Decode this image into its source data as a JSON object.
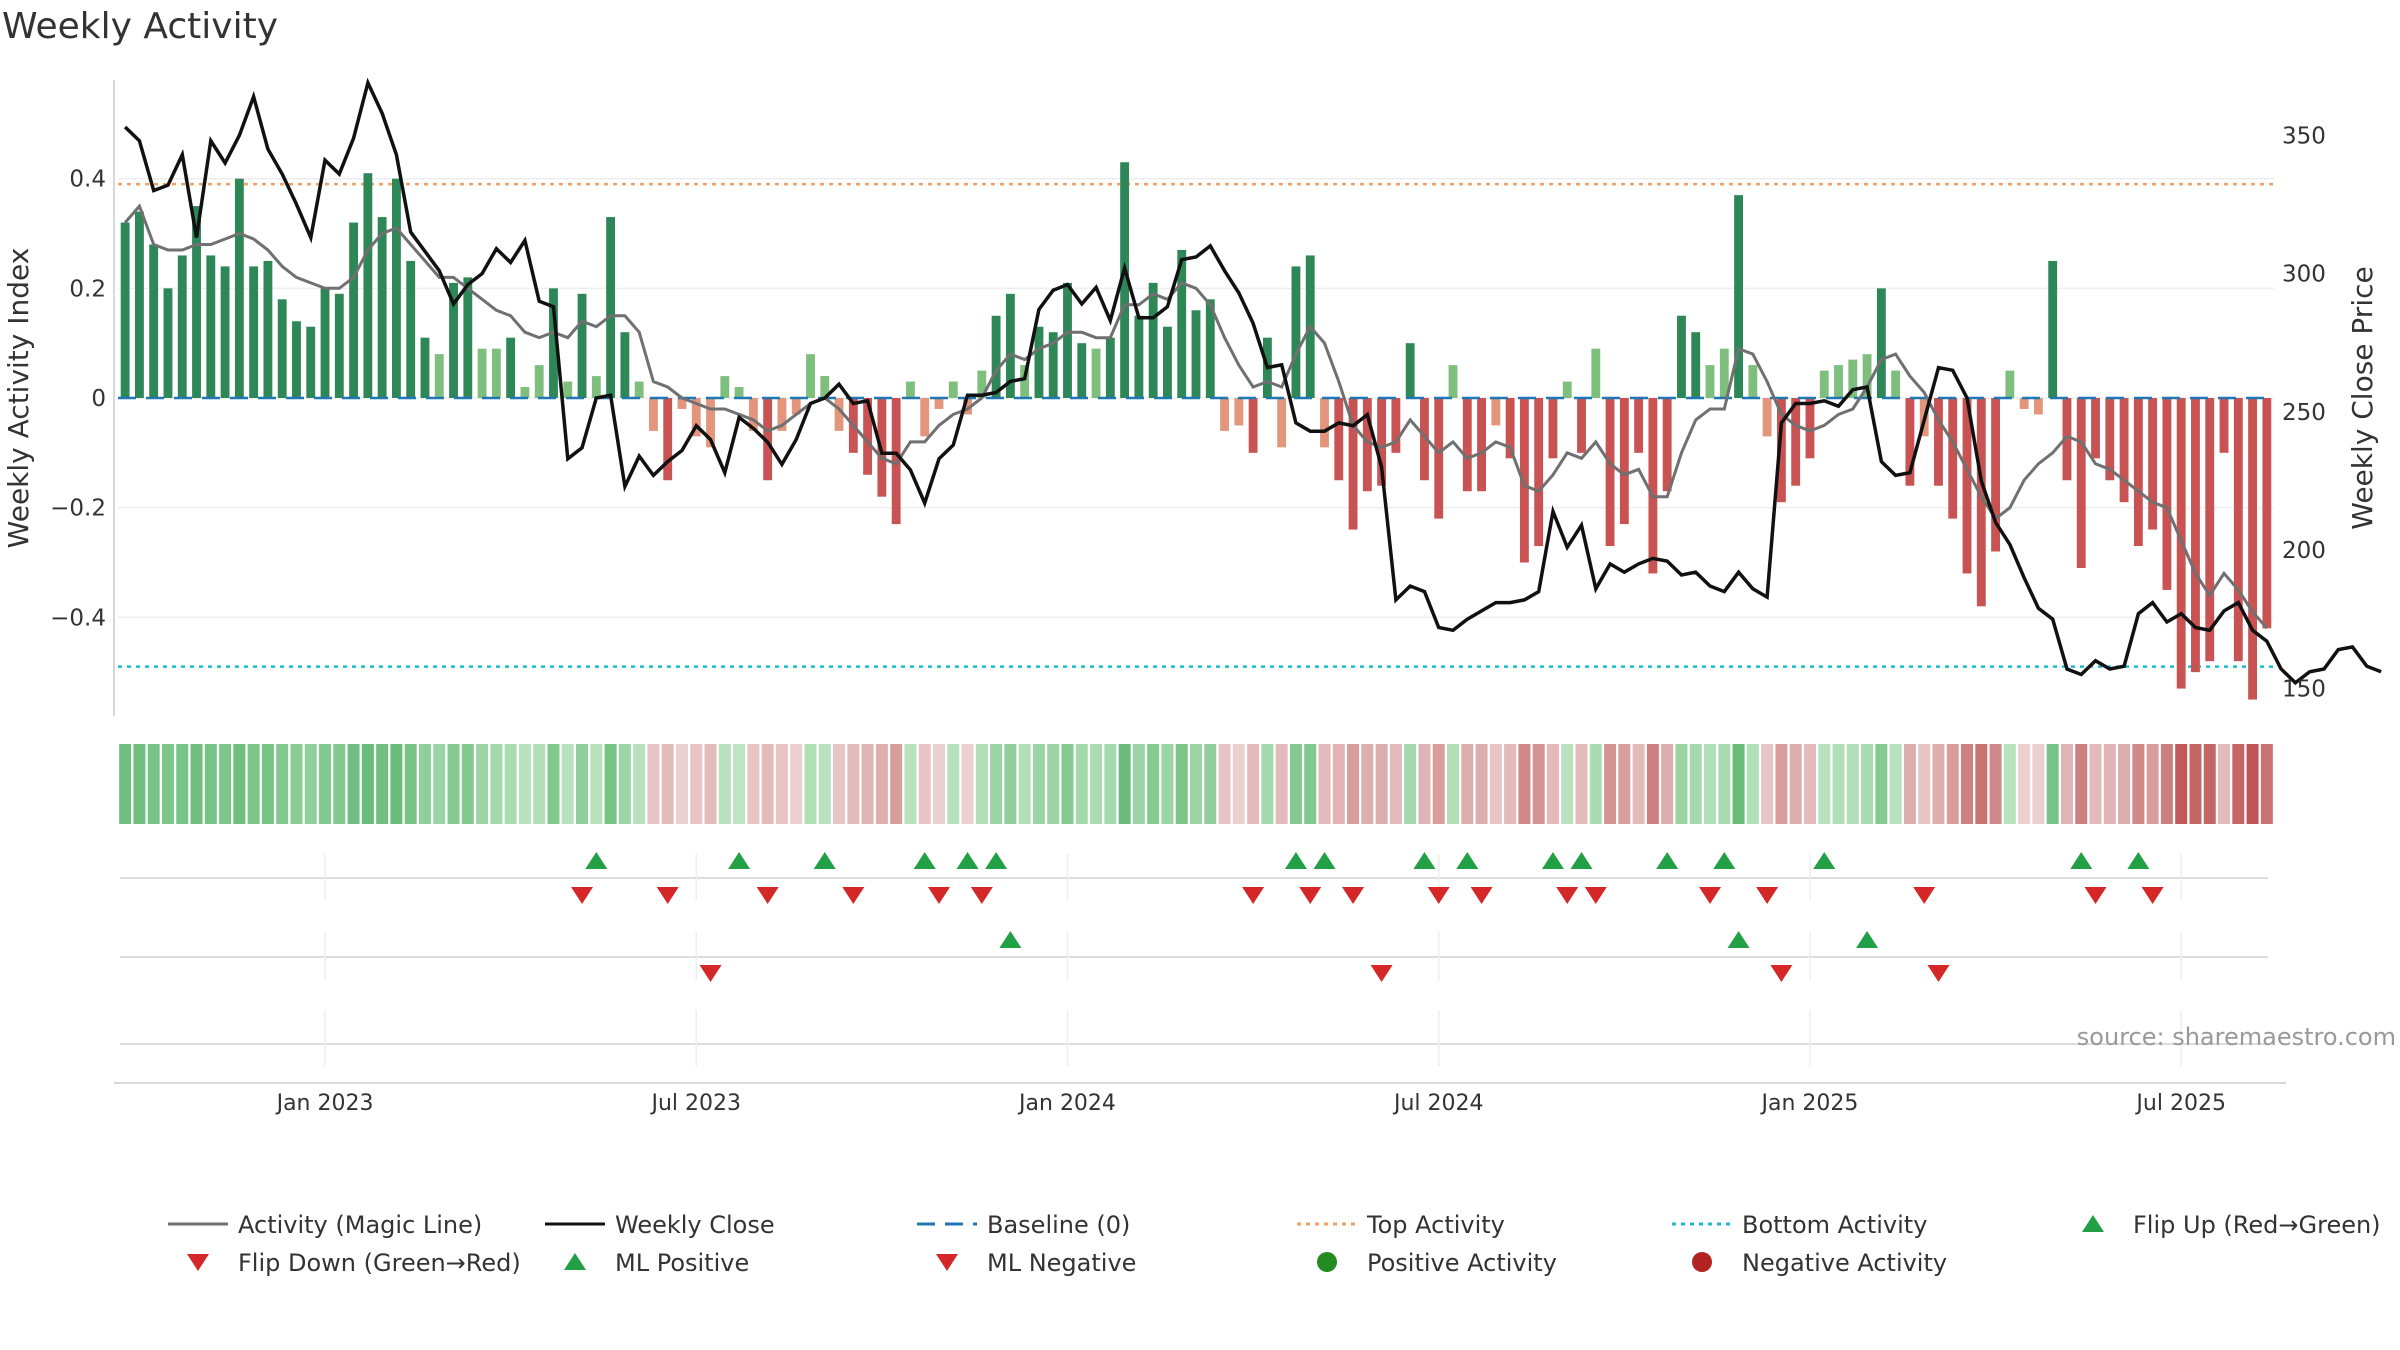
{
  "chart_data": {
    "type": "bar",
    "title": "Weekly Activity",
    "ylabel": "Weekly Activity Index",
    "ylabel_right": "Weekly Close Price",
    "ylim": [
      -0.58,
      0.58
    ],
    "ylim_right": [
      140,
      370
    ],
    "yticks": [
      {
        "v": 0.4,
        "label": "0.4"
      },
      {
        "v": 0.2,
        "label": "0.2"
      },
      {
        "v": 0,
        "label": "0"
      },
      {
        "v": -0.2,
        "label": "−0.2"
      },
      {
        "v": -0.4,
        "label": "−0.4"
      }
    ],
    "yticks_right": [
      {
        "v": 350,
        "label": "350"
      },
      {
        "v": 300,
        "label": "300"
      },
      {
        "v": 250,
        "label": "250"
      },
      {
        "v": 200,
        "label": "200"
      },
      {
        "v": 150,
        "label": "150"
      }
    ],
    "xticks": [
      {
        "week": 14.5,
        "label": "Jan 2023"
      },
      {
        "week": 40.5,
        "label": "Jul 2023"
      },
      {
        "week": 66.5,
        "label": "Jan 2024"
      },
      {
        "week": 92.5,
        "label": "Jul 2024"
      },
      {
        "week": 118.5,
        "label": "Jan 2025"
      },
      {
        "week": 144.5,
        "label": "Jul 2025"
      }
    ],
    "top_activity": 0.39,
    "bottom_activity": -0.49,
    "activity": [
      0.32,
      0.34,
      0.28,
      0.2,
      0.26,
      0.35,
      0.26,
      0.24,
      0.4,
      0.24,
      0.25,
      0.18,
      0.14,
      0.13,
      0.2,
      0.19,
      0.32,
      0.41,
      0.33,
      0.4,
      0.25,
      0.11,
      0.08,
      0.21,
      0.22,
      0.09,
      0.09,
      0.11,
      0.02,
      0.06,
      0.2,
      0.03,
      0.19,
      0.04,
      0.33,
      0.12,
      0.03,
      -0.06,
      -0.15,
      -0.02,
      -0.07,
      -0.09,
      0.04,
      0.02,
      -0.06,
      -0.15,
      -0.06,
      -0.03,
      0.08,
      0.04,
      -0.06,
      -0.1,
      -0.14,
      -0.18,
      -0.23,
      0.03,
      -0.07,
      -0.02,
      0.03,
      -0.03,
      0.05,
      0.15,
      0.19,
      0.06,
      0.13,
      0.12,
      0.21,
      0.1,
      0.09,
      0.11,
      0.43,
      0.15,
      0.21,
      0.13,
      0.27,
      0.16,
      0.18,
      -0.06,
      -0.05,
      -0.1,
      0.11,
      -0.09,
      0.24,
      0.26,
      -0.09,
      -0.15,
      -0.24,
      -0.17,
      -0.16,
      -0.1,
      0.1,
      -0.15,
      -0.22,
      0.06,
      -0.17,
      -0.17,
      -0.05,
      -0.11,
      -0.3,
      -0.27,
      -0.11,
      0.03,
      -0.1,
      0.09,
      -0.27,
      -0.23,
      -0.1,
      -0.32,
      -0.17,
      0.15,
      0.12,
      0.06,
      0.09,
      0.37,
      0.06,
      -0.07,
      -0.19,
      -0.16,
      -0.11,
      0.05,
      0.06,
      0.07,
      0.08,
      0.2,
      0.05,
      -0.16,
      -0.07,
      -0.16,
      -0.22,
      -0.32,
      -0.38,
      -0.28,
      0.05,
      -0.02,
      -0.03,
      0.25,
      -0.15,
      -0.31,
      -0.11,
      -0.15,
      -0.19,
      -0.27,
      -0.24,
      -0.35,
      -0.53,
      -0.5,
      -0.48,
      -0.1,
      -0.48,
      -0.55,
      -0.42
    ],
    "magic_line": [
      0.32,
      0.35,
      0.28,
      0.27,
      0.27,
      0.28,
      0.28,
      0.29,
      0.3,
      0.29,
      0.27,
      0.24,
      0.22,
      0.21,
      0.2,
      0.2,
      0.22,
      0.27,
      0.3,
      0.31,
      0.28,
      0.25,
      0.22,
      0.22,
      0.2,
      0.18,
      0.16,
      0.15,
      0.12,
      0.11,
      0.12,
      0.11,
      0.14,
      0.13,
      0.15,
      0.15,
      0.12,
      0.03,
      0.02,
      0.0,
      -0.01,
      -0.02,
      -0.02,
      -0.03,
      -0.04,
      -0.06,
      -0.05,
      -0.03,
      -0.01,
      0.0,
      -0.02,
      -0.05,
      -0.08,
      -0.11,
      -0.12,
      -0.08,
      -0.08,
      -0.05,
      -0.03,
      -0.02,
      0.0,
      0.05,
      0.08,
      0.07,
      0.09,
      0.1,
      0.12,
      0.12,
      0.11,
      0.11,
      0.17,
      0.17,
      0.19,
      0.18,
      0.21,
      0.2,
      0.17,
      0.11,
      0.06,
      0.02,
      0.03,
      0.02,
      0.08,
      0.13,
      0.1,
      0.03,
      -0.05,
      -0.08,
      -0.09,
      -0.08,
      -0.04,
      -0.07,
      -0.1,
      -0.08,
      -0.11,
      -0.1,
      -0.08,
      -0.09,
      -0.16,
      -0.17,
      -0.14,
      -0.1,
      -0.11,
      -0.08,
      -0.12,
      -0.14,
      -0.13,
      -0.18,
      -0.18,
      -0.1,
      -0.04,
      -0.02,
      -0.02,
      0.09,
      0.08,
      0.03,
      -0.03,
      -0.05,
      -0.06,
      -0.05,
      -0.03,
      -0.02,
      0.02,
      0.07,
      0.08,
      0.04,
      0.01,
      -0.04,
      -0.08,
      -0.13,
      -0.18,
      -0.22,
      -0.2,
      -0.15,
      -0.12,
      -0.1,
      -0.07,
      -0.08,
      -0.12,
      -0.13,
      -0.15,
      -0.17,
      -0.19,
      -0.2,
      -0.26,
      -0.32,
      -0.36,
      -0.32,
      -0.35,
      -0.39,
      -0.42
    ],
    "weekly_close": [
      353,
      348,
      330,
      332,
      343,
      313,
      348,
      340,
      350,
      364,
      345,
      336,
      325,
      313,
      341,
      336,
      349,
      369,
      358,
      343,
      315,
      308,
      301,
      289,
      296,
      300,
      309,
      304,
      312,
      290,
      288,
      233,
      237,
      255,
      256,
      223,
      234,
      227,
      232,
      236,
      245,
      240,
      228,
      248,
      244,
      239,
      231,
      240,
      253,
      255,
      260,
      253,
      254,
      235,
      235,
      229,
      217,
      233,
      238,
      256,
      256,
      257,
      261,
      262,
      287,
      294,
      296,
      289,
      295,
      283,
      302,
      284,
      284,
      288,
      305,
      306,
      310,
      301,
      293,
      282,
      266,
      267,
      246,
      243,
      243,
      246,
      245,
      249,
      230,
      182,
      187,
      185,
      172,
      171,
      175,
      178,
      181,
      181,
      182,
      185,
      214,
      201,
      209,
      186,
      195,
      192,
      195,
      197,
      196,
      191,
      192,
      187,
      185,
      192,
      186,
      183,
      246,
      253,
      253,
      254,
      252,
      258,
      259,
      232,
      227,
      228,
      247,
      266,
      265,
      255,
      225,
      210,
      202,
      190,
      179,
      175,
      157,
      155,
      160,
      157,
      158,
      177,
      181,
      174,
      177,
      172,
      171,
      178,
      181,
      171,
      167,
      157,
      152,
      156,
      157,
      164,
      165,
      158,
      156
    ],
    "heat_colors": [
      "#70BF80",
      "#70BF80",
      "#78C486",
      "#7DC68A",
      "#78C486",
      "#70BF80",
      "#78C486",
      "#7DC68A",
      "#70BF80",
      "#7DC68A",
      "#78C486",
      "#82C98F",
      "#8ACC95",
      "#8FCF9A",
      "#82C98F",
      "#82C98F",
      "#70BF80",
      "#6ABC7B",
      "#70BF80",
      "#6ABC7B",
      "#78C486",
      "#90CF9B",
      "#9BD5A5",
      "#84CA91",
      "#82C98F",
      "#9BD5A5",
      "#A4D9AD",
      "#AADCB2",
      "#B8E2BE",
      "#B0DFB8",
      "#82C98F",
      "#B8E2BE",
      "#8FCF9A",
      "#B8E2BE",
      "#78C486",
      "#9BD5A5",
      "#B8E2BE",
      "#E8C4C4",
      "#E3BBBB",
      "#ECD0D0",
      "#E8C4C4",
      "#E3BBBB",
      "#B8E2BE",
      "#BFE5C4",
      "#E8C4C4",
      "#E3BBBB",
      "#E8C4C4",
      "#ECD0D0",
      "#B0DFB8",
      "#B8E2BE",
      "#E8C4C4",
      "#E3BBBB",
      "#E0B4B4",
      "#DCAEAE",
      "#D89E9E",
      "#B8E2BE",
      "#E8C4C4",
      "#ECD0D0",
      "#B8E2BE",
      "#ECD0D0",
      "#B0DFB8",
      "#9BD5A5",
      "#90CF9B",
      "#B0DFB8",
      "#9BD5A5",
      "#9BD5A5",
      "#84CA91",
      "#A4D9AD",
      "#AADCB2",
      "#A4D9AD",
      "#6ABC7B",
      "#9BD5A5",
      "#84CA91",
      "#9BD5A5",
      "#7DC68A",
      "#9BD5A5",
      "#90CF9B",
      "#E8C4C4",
      "#ECD0D0",
      "#E3BBBB",
      "#A4D9AD",
      "#E3BBBB",
      "#84CA91",
      "#82C98F",
      "#E3BBBB",
      "#E0B4B4",
      "#D89E9E",
      "#DCAEAE",
      "#DCAEAE",
      "#E3BBBB",
      "#A4D9AD",
      "#E0B4B4",
      "#D89E9E",
      "#B0DFB8",
      "#DCAEAE",
      "#DCAEAE",
      "#E8C4C4",
      "#E3BBBB",
      "#D08888",
      "#D49494",
      "#E3BBBB",
      "#B8E2BE",
      "#E3BBBB",
      "#AADCB2",
      "#D49494",
      "#D89E9E",
      "#E3BBBB",
      "#CC8080",
      "#DCAEAE",
      "#9BD5A5",
      "#A4D9AD",
      "#B0DFB8",
      "#AADCB2",
      "#6ABC7B",
      "#B0DFB8",
      "#E8C4C4",
      "#D89E9E",
      "#DCAEAE",
      "#E3BBBB",
      "#B8E2BE",
      "#B0DFB8",
      "#B0DFB8",
      "#AADCB2",
      "#84CA91",
      "#B8E2BE",
      "#DCAEAE",
      "#E8C4C4",
      "#DCAEAE",
      "#D89E9E",
      "#CC8080",
      "#C87474",
      "#D08888",
      "#B8E2BE",
      "#ECD0D0",
      "#ECD0D0",
      "#78C486",
      "#E0B4B4",
      "#CC8080",
      "#E3BBBB",
      "#E0B4B4",
      "#DCAEAE",
      "#D08888",
      "#D89E9E",
      "#CC8080",
      "#C05A5A",
      "#C46666",
      "#C46666",
      "#E3BBBB",
      "#C46666",
      "#BE5555",
      "#C87474"
    ],
    "events_row1": {
      "flip_up": [
        33,
        43,
        49,
        56,
        59,
        61,
        82,
        84,
        91,
        94,
        100,
        102,
        108,
        112,
        119,
        137,
        141
      ],
      "flip_down": [
        32,
        38,
        45,
        51,
        57,
        60,
        79,
        83,
        86,
        92,
        95,
        101,
        103,
        111,
        115,
        126,
        138,
        142
      ]
    },
    "events_row2": {
      "ml_positive": [
        62,
        113,
        122
      ],
      "ml_negative": [
        41,
        88,
        116,
        127
      ]
    },
    "legend": [
      {
        "label": "Activity (Magic Line)",
        "symbol": "line-gray"
      },
      {
        "label": "Weekly Close",
        "symbol": "line-black"
      },
      {
        "label": "Baseline (0)",
        "symbol": "dash-blue"
      },
      {
        "label": "Top Activity",
        "symbol": "dot-orange"
      },
      {
        "label": "Bottom Activity",
        "symbol": "dot-cyan"
      },
      {
        "label": "Flip Up (Red→Green)",
        "symbol": "tri-up"
      },
      {
        "label": "Flip Down (Green→Red)",
        "symbol": "tri-down"
      },
      {
        "label": "ML Positive",
        "symbol": "tri-up"
      },
      {
        "label": "ML Negative",
        "symbol": "tri-down"
      },
      {
        "label": "Positive Activity",
        "symbol": "circle-green"
      },
      {
        "label": "Negative Activity",
        "symbol": "circle-red"
      }
    ],
    "source": "source: sharemaestro.com",
    "colors": {
      "pos_dark": "#2E8757",
      "pos_light": "#7EBF7E",
      "neg_dark": "#C95353",
      "neg_light": "#E3967C",
      "magic_line": "#707070",
      "close": "#111111",
      "baseline": "#1F77B4",
      "top": "#F0A060",
      "bottom": "#17BECF",
      "tri_up": "#22A045",
      "tri_down": "#D62728",
      "pos_circle": "#228B22",
      "neg_circle": "#B22222"
    }
  }
}
